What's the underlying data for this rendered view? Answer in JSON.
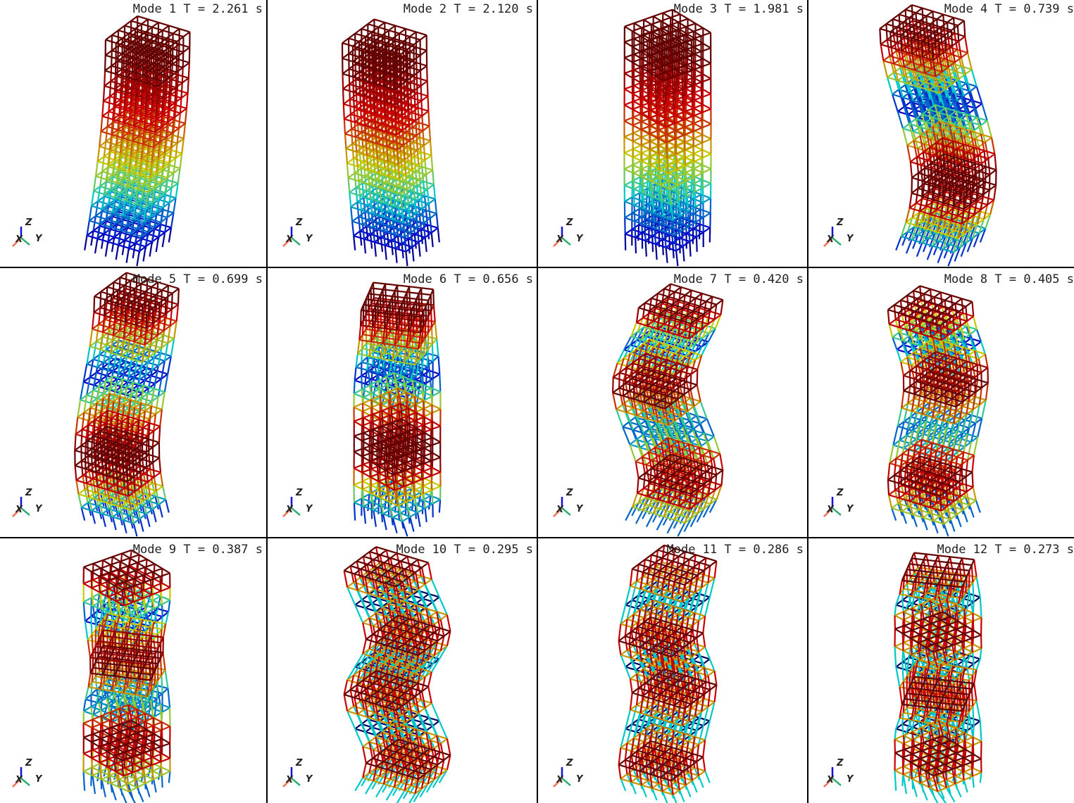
{
  "modes": [
    {
      "label": "Mode 1",
      "period": "T = 2.261 s",
      "type": "bending-x",
      "order": 1
    },
    {
      "label": "Mode 2",
      "period": "T = 2.120 s",
      "type": "bending-y",
      "order": 1
    },
    {
      "label": "Mode 3",
      "period": "T = 1.981 s",
      "type": "torsion",
      "order": 1
    },
    {
      "label": "Mode 4",
      "period": "T = 0.739 s",
      "type": "bending-x",
      "order": 2
    },
    {
      "label": "Mode 5",
      "period": "T = 0.699 s",
      "type": "bending-y",
      "order": 2
    },
    {
      "label": "Mode 6",
      "period": "T = 0.656 s",
      "type": "torsion",
      "order": 2
    },
    {
      "label": "Mode 7",
      "period": "T = 0.420 s",
      "type": "bending-x",
      "order": 3
    },
    {
      "label": "Mode 8",
      "period": "T = 0.405 s",
      "type": "bending-y",
      "order": 3
    },
    {
      "label": "Mode 9",
      "period": "T = 0.387 s",
      "type": "torsion",
      "order": 3
    },
    {
      "label": "Mode 10",
      "period": "T = 0.295 s",
      "type": "bending-x",
      "order": 4
    },
    {
      "label": "Mode 11",
      "period": "T = 0.286 s",
      "type": "bending-y",
      "order": 4
    },
    {
      "label": "Mode 12",
      "period": "T = 0.273 s",
      "type": "torsion",
      "order": 4
    }
  ],
  "axes": {
    "x": "X",
    "y": "Y",
    "z": "Z"
  },
  "colors": {
    "x_axis": "#f07050",
    "y_axis": "#30b070",
    "z_axis": "#1010e0",
    "colormap": "jet"
  }
}
